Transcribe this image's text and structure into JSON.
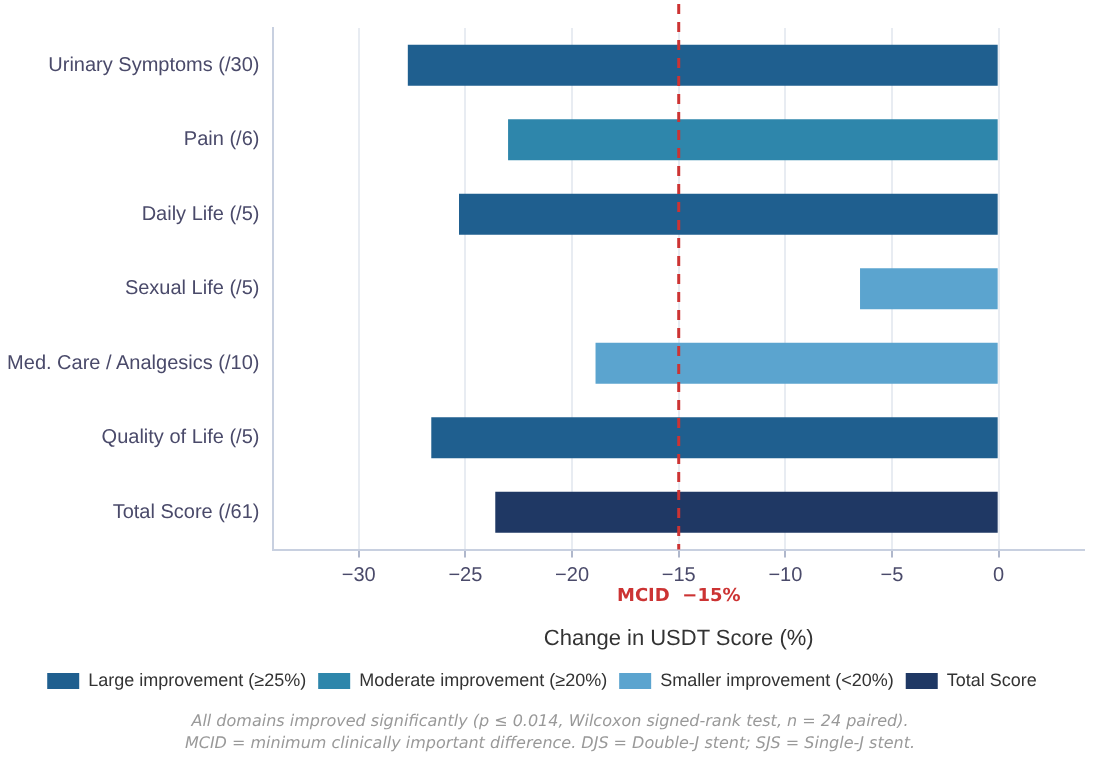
{
  "chart_data": {
    "type": "bar",
    "orientation": "horizontal",
    "xlabel": "Change in USDT Score (%)",
    "categories": [
      "Urinary Symptoms (/30)",
      "Pain (/6)",
      "Daily Life (/5)",
      "Sexual Life (/5)",
      "Med. Care / Analgesics (/10)",
      "Quality of Life (/5)",
      "Total Score (/61)"
    ],
    "series": [
      {
        "name": "Large improvement (≥25%)",
        "color": "#1f5f8f",
        "values": [
          -27.7,
          null,
          -25.3,
          null,
          null,
          -26.6,
          null
        ]
      },
      {
        "name": "Moderate improvement (≥20%)",
        "color": "#2e86ab",
        "values": [
          null,
          -23.0,
          null,
          null,
          null,
          null,
          null
        ]
      },
      {
        "name": "Smaller improvement (<20%)",
        "color": "#5ba4cf",
        "values": [
          null,
          null,
          null,
          -6.5,
          -18.9,
          null,
          null
        ]
      },
      {
        "name": "Total Score",
        "color": "#1f3864",
        "values": [
          null,
          null,
          null,
          null,
          null,
          null,
          -23.6
        ]
      }
    ],
    "xlim": [
      -34,
      4
    ],
    "xticks": [
      -30,
      -25,
      -20,
      -15,
      -10,
      -5,
      0
    ],
    "grid": "x",
    "legend": "bottom",
    "ref_lines": [
      {
        "axis": "x",
        "value": -15,
        "label": "MCID  −15%",
        "color": "#cc3333",
        "line_style": "dashed"
      }
    ],
    "annotations": [
      "All domains improved significantly (p ≤ 0.014, Wilcoxon signed-rank test, n = 24 paired).",
      "MCID = minimum clinically important difference. DJS = Double-J stent; SJS = Single-J stent."
    ]
  }
}
